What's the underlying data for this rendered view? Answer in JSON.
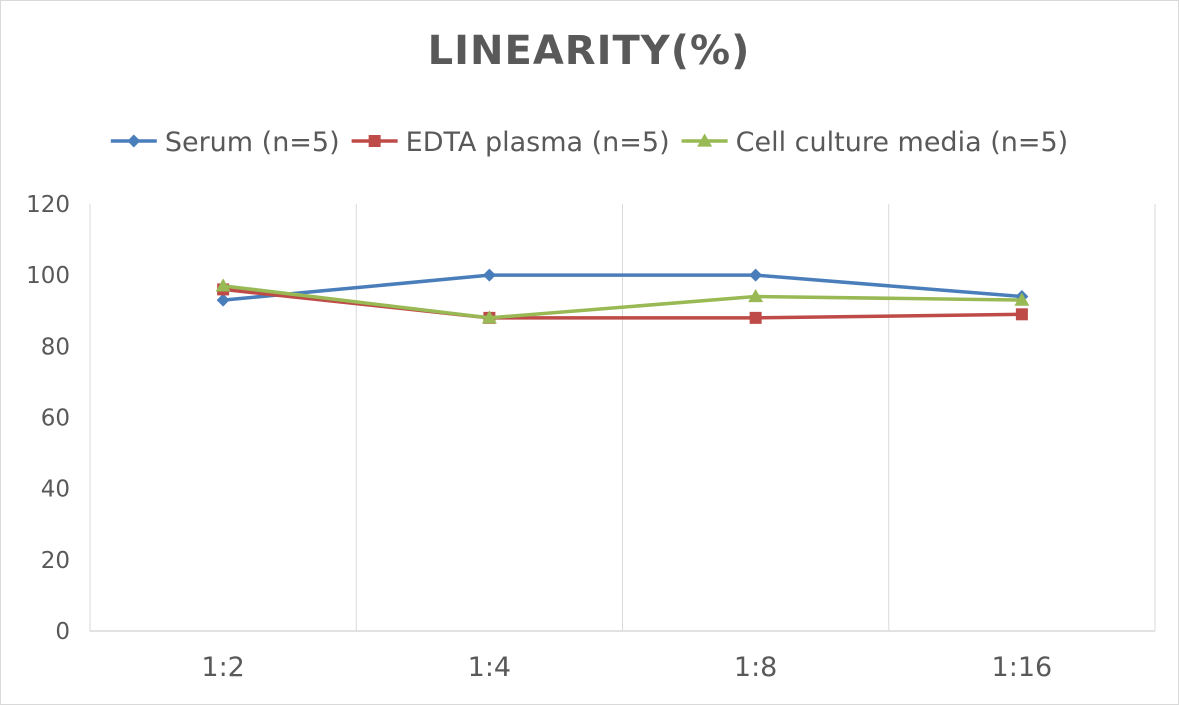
{
  "chart_data": {
    "type": "line",
    "title": "LINEARITY(%)",
    "categories": [
      "1:2",
      "1:4",
      "1:8",
      "1:16"
    ],
    "ylim": [
      0,
      120
    ],
    "yticks": [
      0,
      20,
      40,
      60,
      80,
      100,
      120
    ],
    "grid": "vertical",
    "legend": "top",
    "series": [
      {
        "name": "Serum (n=5)",
        "values": [
          93,
          100,
          100,
          94
        ],
        "color": "#4a7ebb",
        "marker": "diamond"
      },
      {
        "name": "EDTA plasma (n=5)",
        "values": [
          96,
          88,
          88,
          89
        ],
        "color": "#be4b48",
        "marker": "square"
      },
      {
        "name": "Cell culture media (n=5)",
        "values": [
          97,
          88,
          94,
          93
        ],
        "color": "#98b954",
        "marker": "triangle"
      }
    ]
  }
}
